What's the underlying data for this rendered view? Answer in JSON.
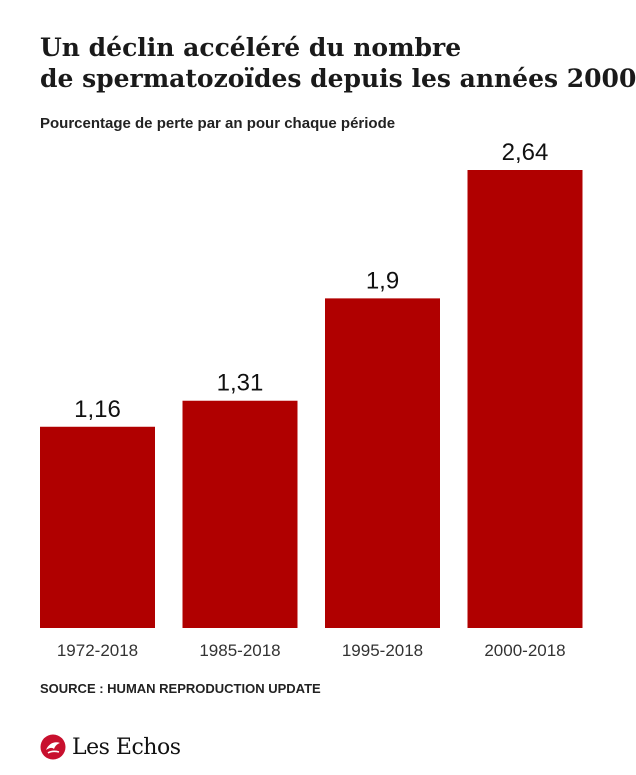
{
  "title_line1": "Un déclin accéléré du nombre",
  "title_line2": "de spermatozoïdes depuis les années 2000",
  "subtitle": "Pourcentage de perte par an pour chaque période",
  "source": "SOURCE : HUMAN REPRODUCTION UPDATE",
  "logo_text": "Les Echos",
  "colors": {
    "bar": "#b00000",
    "logo_accent": "#c8102e"
  },
  "chart_data": {
    "type": "bar",
    "categories": [
      "1972-2018",
      "1985-2018",
      "1995-2018",
      "2000-2018"
    ],
    "values": [
      1.16,
      1.31,
      1.9,
      2.64
    ],
    "value_labels": [
      "1,16",
      "1,31",
      "1,9",
      "2,64"
    ],
    "title": "Un déclin accéléré du nombre de spermatozoïdes depuis les années 2000",
    "subtitle": "Pourcentage de perte par an pour chaque période",
    "xlabel": "",
    "ylabel": "",
    "ylim": [
      0,
      2.64
    ],
    "grid": false,
    "legend": "none"
  }
}
